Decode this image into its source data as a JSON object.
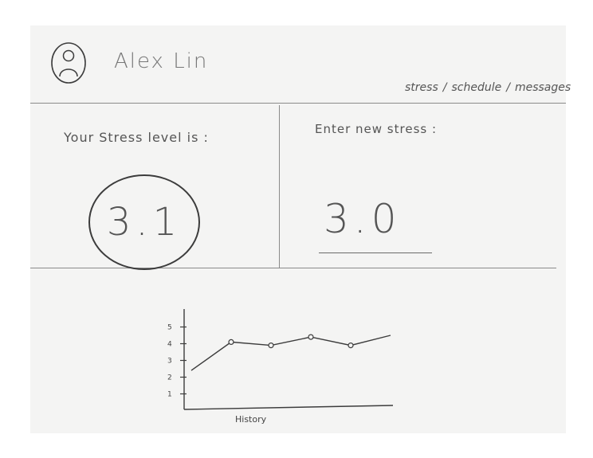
{
  "user": {
    "name": "Alex Lin",
    "avatar_icon": "user-avatar-icon"
  },
  "nav": {
    "items": [
      "stress",
      "schedule",
      "messages"
    ],
    "separator": "/"
  },
  "current_stress": {
    "label": "Your Stress level is :",
    "value": "3.1"
  },
  "new_stress": {
    "label": "Enter new stress :",
    "value": "3.0"
  },
  "history_chart": {
    "xlabel": "History",
    "chart_data": {
      "type": "line",
      "title": "",
      "xlabel": "History",
      "ylabel": "",
      "ylim": [
        0.5,
        5.5
      ],
      "yticks": [
        "1",
        "2",
        "3",
        "4",
        "5"
      ],
      "series": [
        {
          "points": [
            [
              0,
              2.4
            ],
            [
              1,
              4.1
            ],
            [
              2,
              3.9
            ],
            [
              3,
              4.4
            ],
            [
              4,
              3.9
            ],
            [
              5,
              4.5
            ]
          ],
          "markers": [
            1,
            2,
            3,
            4
          ]
        }
      ]
    }
  }
}
